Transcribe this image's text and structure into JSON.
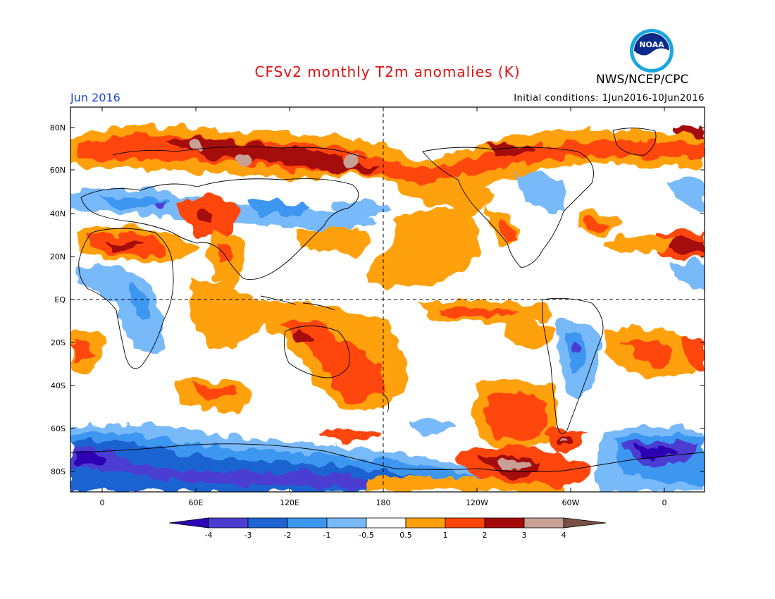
{
  "title": "CFSv2 monthly T2m anomalies (K)",
  "month": "Jun 2016",
  "initial_conditions": "Initial conditions: 1Jun2016-10Jun2016",
  "agency": "NWS/NCEP/CPC",
  "logo_text": "NOAA",
  "lat_labels": [
    "80N",
    "60N",
    "40N",
    "20N",
    "EQ",
    "20S",
    "40S",
    "60S",
    "80S"
  ],
  "lon_labels": [
    "0",
    "60E",
    "120E",
    "180",
    "120W",
    "60W",
    "0"
  ],
  "colorbar": {
    "labels": [
      "-4",
      "-3",
      "-2",
      "-1",
      "-0.5",
      "0.5",
      "1",
      "2",
      "3",
      "4"
    ],
    "colors": [
      "#2d05b4",
      "#4b3cd2",
      "#1e64d2",
      "#3c96f0",
      "#78b9fa",
      "#ffffff",
      "#ffa00a",
      "#ff460a",
      "#a50a0a",
      "#c8a096",
      "#785046"
    ]
  },
  "map_colors": {
    "ocean_background": "#ffffff",
    "warm_1": "#ffa00a",
    "warm_2": "#ff460a",
    "warm_3": "#a50a0a",
    "warm_4": "#c8a096",
    "cool_1": "#78b9fa",
    "cool_2": "#3c96f0",
    "cool_3": "#1e64d2",
    "cool_4": "#4b3cd2",
    "cool_5": "#2d05b4"
  }
}
